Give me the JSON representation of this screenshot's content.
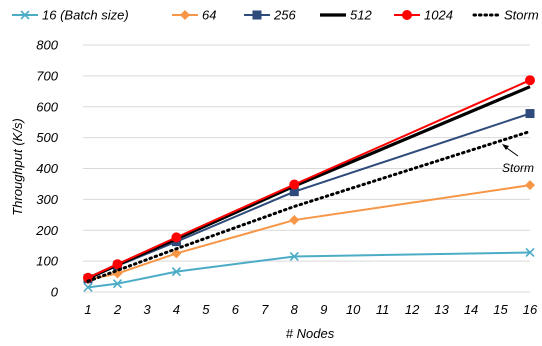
{
  "chart_data": {
    "type": "line",
    "xlabel": "# Nodes",
    "ylabel": "Throughput (K/s)",
    "ylim": [
      0,
      800
    ],
    "yticks": [
      "0",
      "100",
      "200",
      "300",
      "400",
      "500",
      "600",
      "700",
      "800"
    ],
    "categories": [
      "1",
      "2",
      "3",
      "4",
      "5",
      "6",
      "7",
      "8",
      "9",
      "10",
      "11",
      "12",
      "13",
      "14",
      "15",
      "16"
    ],
    "grid": "horizontal",
    "legend_position": "top",
    "annotation": "Storm",
    "series": [
      {
        "name": "16 (Batch size)",
        "x": [
          1,
          2,
          4,
          8,
          16
        ],
        "values": [
          15,
          27,
          66,
          115,
          128
        ],
        "color": "#4bacc6",
        "marker": "x",
        "dash": "solid"
      },
      {
        "name": "64",
        "x": [
          1,
          2,
          4,
          8,
          16
        ],
        "values": [
          40,
          60,
          125,
          233,
          346
        ],
        "color": "#f79646",
        "marker": "diamond",
        "dash": "solid"
      },
      {
        "name": "256",
        "x": [
          1,
          2,
          4,
          8,
          16
        ],
        "values": [
          43,
          85,
          163,
          325,
          578
        ],
        "color": "#2f4b7c",
        "marker": "square",
        "dash": "solid"
      },
      {
        "name": "512",
        "x": [
          1,
          2,
          4,
          8,
          16
        ],
        "values": [
          44,
          88,
          172,
          343,
          665
        ],
        "color": "#000000",
        "marker": "none",
        "dash": "solid"
      },
      {
        "name": "1024",
        "x": [
          1,
          2,
          4,
          8,
          16
        ],
        "values": [
          46,
          90,
          177,
          348,
          686
        ],
        "color": "#ff0000",
        "marker": "circle",
        "dash": "solid"
      },
      {
        "name": "Storm",
        "x": [
          1,
          2,
          4,
          8,
          16
        ],
        "values": [
          35,
          70,
          140,
          277,
          520
        ],
        "color": "#000000",
        "marker": "none",
        "dash": "dotted"
      }
    ]
  }
}
